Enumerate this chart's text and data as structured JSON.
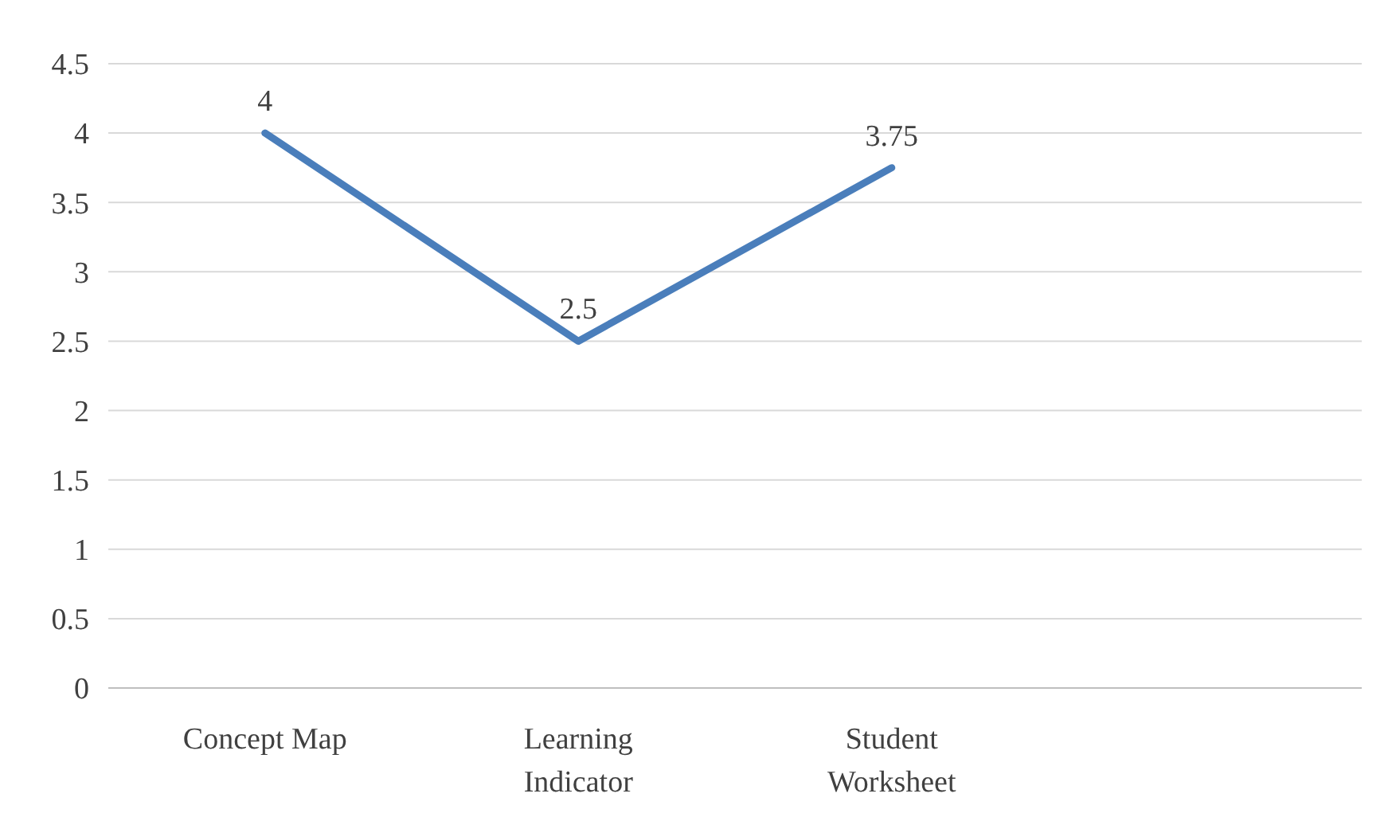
{
  "chart_data": {
    "type": "line",
    "categories": [
      "Concept Map",
      "Learning Indicator",
      "Student Worksheet",
      null
    ],
    "series": [
      {
        "color": "#4a7ebb",
        "values": [
          4,
          2.5,
          3.75,
          null
        ]
      }
    ],
    "ylim": [
      0,
      4.5
    ],
    "yticks": [
      0,
      0.5,
      1,
      1.5,
      2,
      2.5,
      3,
      3.5,
      4,
      4.5
    ],
    "grid": "y",
    "data_labels": true,
    "marker": "none",
    "line_style": "solid"
  }
}
